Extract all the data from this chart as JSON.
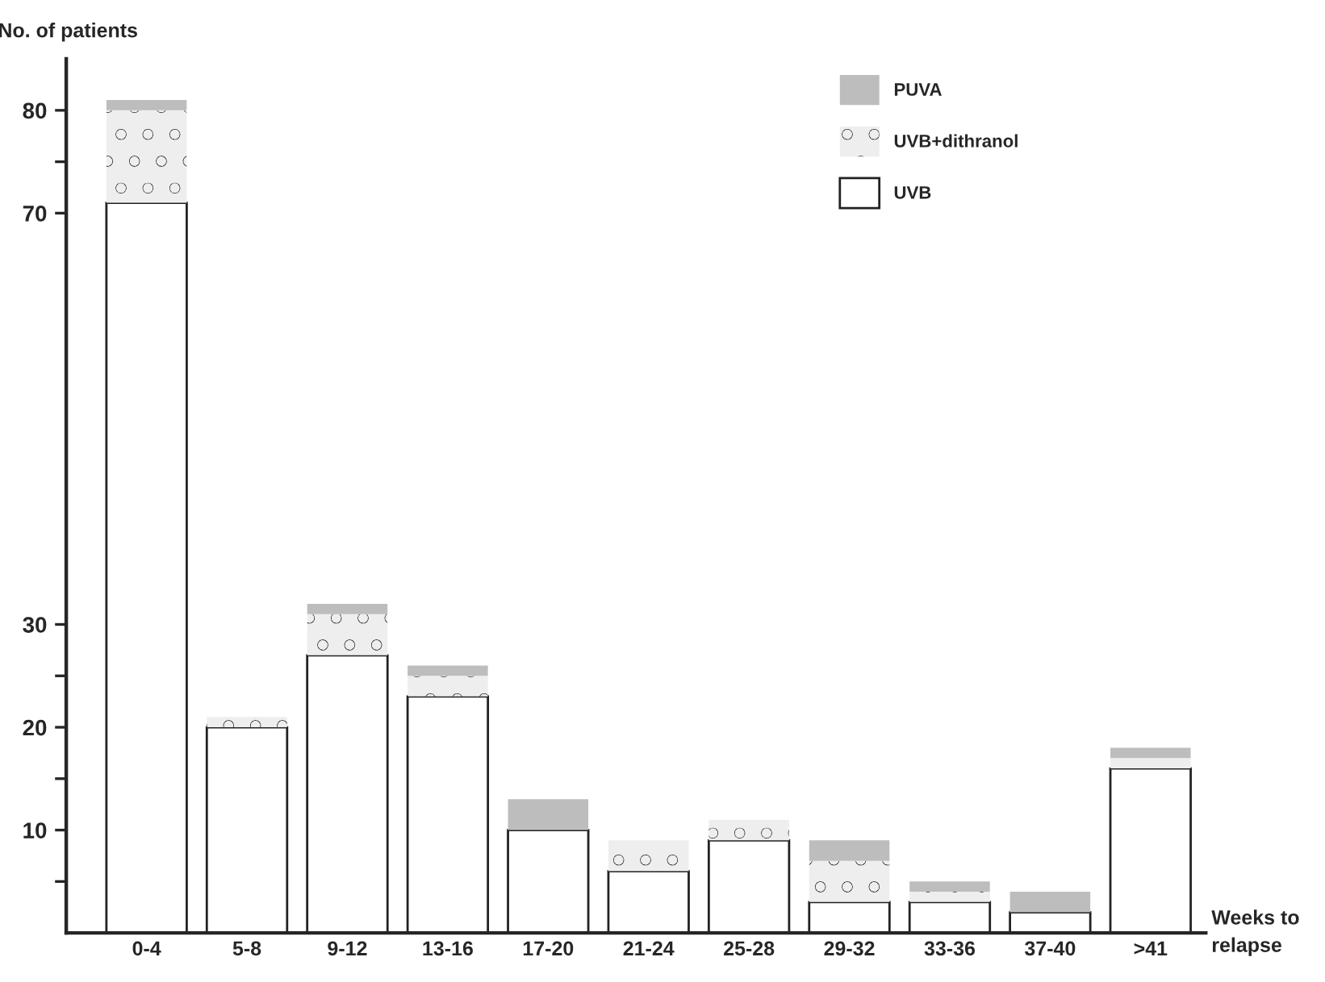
{
  "chart_data": {
    "type": "bar",
    "stacked": true,
    "xlabel": "Weeks to relapse",
    "ylabel": "No. of patients",
    "categories": [
      "0-4",
      "5-8",
      "9-12",
      "13-16",
      "17-20",
      "21-24",
      "25-28",
      "29-32",
      "33-36",
      "37-40",
      ">41"
    ],
    "series": [
      {
        "name": "UVB",
        "color": "#ffffff",
        "values": [
          71,
          20,
          27,
          23,
          10,
          6,
          9,
          3,
          3,
          2,
          16
        ]
      },
      {
        "name": "UVB+dithranol",
        "color": "#eeeeee",
        "values": [
          9,
          1,
          4,
          2,
          0,
          3,
          2,
          4,
          1,
          0,
          1
        ]
      },
      {
        "name": "PUVA",
        "color": "#bdbdbd",
        "values": [
          1,
          0,
          1,
          1,
          3,
          0,
          0,
          2,
          1,
          2,
          1
        ]
      }
    ],
    "ylim": [
      0,
      85
    ],
    "yticks": [
      {
        "value": 5,
        "label": null
      },
      10,
      {
        "value": 15,
        "label": null
      },
      20,
      {
        "value": 25,
        "label": null
      },
      30,
      70,
      {
        "value": 75,
        "label": null
      },
      80
    ],
    "grid": false,
    "legend": "top right"
  }
}
